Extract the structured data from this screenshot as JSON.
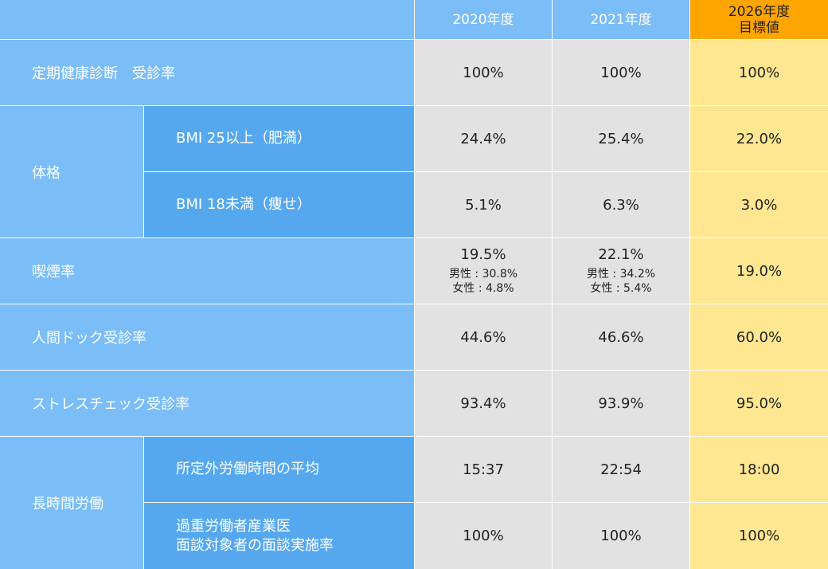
{
  "header": {
    "y2020": "2020年度",
    "y2021": "2021年度",
    "target_line1": "2026年度",
    "target_line2": "目標値"
  },
  "rows": {
    "checkup": {
      "label": "定期健康診断　受診率",
      "v2020": "100%",
      "v2021": "100%",
      "target": "100%"
    },
    "physique": {
      "label": "体格",
      "obese": {
        "label": "BMI 25以上（肥満）",
        "v2020": "24.4%",
        "v2021": "25.4%",
        "target": "22.0%"
      },
      "thin": {
        "label": "BMI 18未満（痩せ）",
        "v2020": "5.1%",
        "v2021": "6.3%",
        "target": "3.0%"
      }
    },
    "smoking": {
      "label": "喫煙率",
      "v2020": "19.5%",
      "v2020_male": "男性 : 30.8%",
      "v2020_female": "女性 : 4.8%",
      "v2021": "22.1%",
      "v2021_male": "男性 : 34.2%",
      "v2021_female": "女性 : 5.4%",
      "target": "19.0%"
    },
    "dock": {
      "label": "人間ドック受診率",
      "v2020": "44.6%",
      "v2021": "46.6%",
      "target": "60.0%"
    },
    "stress": {
      "label": "ストレスチェック受診率",
      "v2020": "93.4%",
      "v2021": "93.9%",
      "target": "95.0%"
    },
    "overtime": {
      "label": "長時間労働",
      "avg": {
        "label": "所定外労働時間の平均",
        "v2020": "15:37",
        "v2021": "22:54",
        "target": "18:00"
      },
      "interview": {
        "label_line1": "過重労働者産業医",
        "label_line2": "面談対象者の面談実施率",
        "v2020": "100%",
        "v2021": "100%",
        "target": "100%"
      }
    }
  },
  "colors": {
    "label_bg": "#7bbdf6",
    "sublabel_bg": "#56a8ee",
    "value_bg": "#e2e2e2",
    "target_header_bg": "#ffa500",
    "target_bg": "#ffe792"
  }
}
